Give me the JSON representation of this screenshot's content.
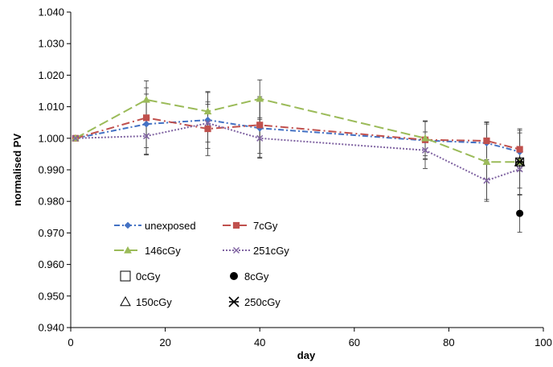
{
  "chart_data": {
    "type": "line",
    "xlabel": "day",
    "ylabel": "normalised PV",
    "xlim": [
      0,
      100
    ],
    "ylim": [
      0.94,
      1.04
    ],
    "x_ticks": [
      0,
      20,
      40,
      60,
      80,
      100
    ],
    "y_ticks": [
      0.94,
      0.95,
      0.96,
      0.97,
      0.98,
      0.99,
      1.0,
      1.01,
      1.02,
      1.03,
      1.04
    ],
    "x_tick_labels": [
      "0",
      "20",
      "40",
      "60",
      "80",
      "100"
    ],
    "y_tick_labels": [
      "0.940",
      "0.950",
      "0.960",
      "0.970",
      "0.980",
      "0.990",
      "1.000",
      "1.010",
      "1.020",
      "1.030",
      "1.040"
    ],
    "grid": false,
    "legend_placement": "bottom-left",
    "series": [
      {
        "name": "unexposed",
        "color": "#4472C4",
        "marker": "diamond",
        "line_style": "dash-dot",
        "x": [
          1,
          16,
          29,
          40,
          75,
          88,
          95
        ],
        "y": [
          1.0,
          1.0045,
          1.0058,
          1.0032,
          0.9993,
          0.9985,
          0.9957
        ],
        "error": [
          0,
          0.0095,
          0.009,
          0.0095,
          0.006,
          0.006,
          0.006
        ]
      },
      {
        "name": "7cGy",
        "color": "#C0504D",
        "marker": "square",
        "line_style": "long-dash-dot",
        "x": [
          1,
          16,
          29,
          40,
          75,
          88,
          95
        ],
        "y": [
          1.0,
          1.0065,
          1.003,
          1.0042,
          0.9995,
          0.9992,
          0.9965
        ],
        "error": [
          0,
          0.0095,
          0.0085,
          0.009,
          0.006,
          0.006,
          0.006
        ]
      },
      {
        "name": "146cGy",
        "color": "#9BBB59",
        "marker": "triangle",
        "line_style": "long-dash",
        "x": [
          1,
          16,
          29,
          40,
          75,
          88,
          95
        ],
        "y": [
          1.0,
          1.0122,
          1.0085,
          1.0125,
          1.0,
          0.9925,
          0.9925
        ],
        "error": [
          0,
          0.006,
          0.006,
          0.006,
          0.0055,
          0.0125,
          0.0105
        ]
      },
      {
        "name": "251cGy",
        "color": "#8064A2",
        "marker": "x",
        "line_style": "dotted",
        "x": [
          1,
          16,
          29,
          40,
          75,
          88,
          95
        ],
        "y": [
          1.0,
          1.0007,
          1.0048,
          1.0,
          0.9962,
          0.9866,
          0.9902
        ],
        "error": [
          0,
          0.006,
          0.006,
          0.006,
          0.0058,
          0.006,
          0.006
        ]
      },
      {
        "name": "0cGy",
        "color": "#000000",
        "marker": "open-square",
        "line_style": "none",
        "x": [
          95
        ],
        "y": [
          0.9925
        ],
        "error": [
          0
        ]
      },
      {
        "name": "8cGy",
        "color": "#000000",
        "marker": "filled-circle",
        "line_style": "none",
        "x": [
          95
        ],
        "y": [
          0.9762
        ],
        "error": [
          0.006
        ]
      },
      {
        "name": "150cGy",
        "color": "#000000",
        "marker": "open-triangle",
        "line_style": "none",
        "x": [
          95
        ],
        "y": [
          0.9925
        ],
        "error": [
          0
        ]
      },
      {
        "name": "250cGy",
        "color": "#000000",
        "marker": "asterisk",
        "line_style": "none",
        "x": [
          95
        ],
        "y": [
          0.9925
        ],
        "error": [
          0
        ]
      }
    ]
  }
}
